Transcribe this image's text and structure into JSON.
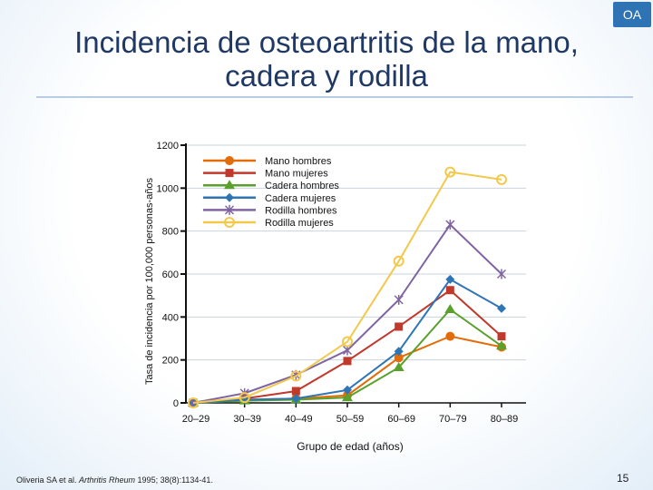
{
  "slide": {
    "badge": "OA",
    "title_line1": "Incidencia de osteoartritis de la mano,",
    "title_line2": "cadera y rodilla",
    "citation_authors": "Oliveria SA et al. ",
    "citation_journal": "Arthritis Rheum",
    "citation_rest": " 1995; 38(8):1134-41.",
    "page_number": "15"
  },
  "chart_data": {
    "type": "line",
    "title": "Incidencia de osteoartritis de la mano, cadera y rodilla",
    "xlabel": "Grupo de edad (años)",
    "ylabel": "Tasa de incidencia por 100,000 personas-años",
    "categories": [
      "20–29",
      "30–39",
      "40–49",
      "50–59",
      "60–69",
      "70–79",
      "80–89"
    ],
    "yticks": [
      "0",
      "200",
      "400",
      "600",
      "800",
      "1000",
      "1200"
    ],
    "ylim": [
      0,
      1200
    ],
    "grid": "horizontal",
    "legend_position": "top-left",
    "series": [
      {
        "name": "Mano hombres",
        "color": "#e36c09",
        "marker": "circle",
        "values": [
          0,
          15,
          20,
          35,
          210,
          310,
          260
        ]
      },
      {
        "name": "Mano mujeres",
        "color": "#c0392b",
        "marker": "square",
        "values": [
          0,
          20,
          55,
          195,
          355,
          525,
          310
        ]
      },
      {
        "name": "Cadera hombres",
        "color": "#5aa02c",
        "marker": "triangle",
        "values": [
          0,
          10,
          15,
          25,
          165,
          435,
          265
        ]
      },
      {
        "name": "Cadera mujeres",
        "color": "#2e75b6",
        "marker": "diamond",
        "values": [
          0,
          15,
          20,
          60,
          240,
          575,
          440
        ]
      },
      {
        "name": "Rodilla hombres",
        "color": "#8064a2",
        "marker": "star",
        "values": [
          0,
          45,
          130,
          245,
          480,
          830,
          600
        ]
      },
      {
        "name": "Rodilla mujeres",
        "color": "#f2c94c",
        "marker": "open-circle",
        "values": [
          0,
          25,
          125,
          285,
          660,
          1075,
          1040
        ]
      }
    ]
  }
}
